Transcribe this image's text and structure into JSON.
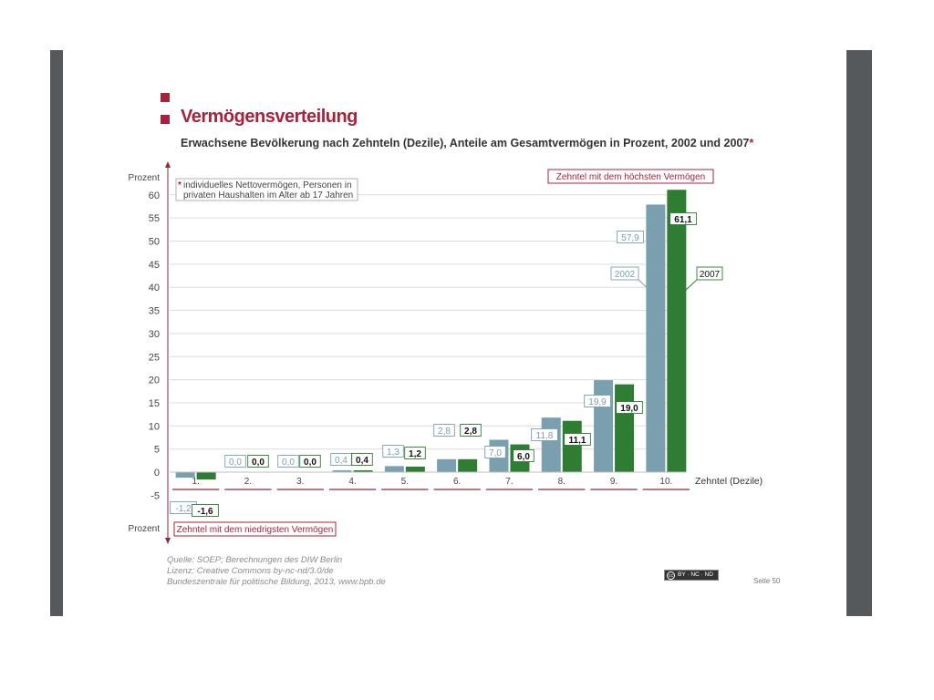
{
  "slide": {
    "title": "Vermögensverteilung",
    "subtitle": "Erwachsene Bevölkerung nach Zehnteln (Dezile), Anteile am Gesamtvermögen in Prozent, 2002 und 2007",
    "subtitle_mark": "*",
    "source_lines": [
      "Quelle: SOEP; Berechnungen des DIW Berlin",
      "Lizenz: Creative Commons by-nc-nd/3.0/de",
      "Bundeszentrale für politische Bildung, 2013, www.bpb.de"
    ],
    "license_badge": "BY · NC · ND",
    "license_logo": "cc",
    "page_number": "Seite 50"
  },
  "chart_data": {
    "type": "bar",
    "categories": [
      "1.",
      "2.",
      "3.",
      "4.",
      "5.",
      "6.",
      "7.",
      "8.",
      "9.",
      "10."
    ],
    "series": [
      {
        "name": "2002",
        "color": "#7a9fae",
        "values": [
          -1.2,
          0.0,
          0.0,
          0.4,
          1.3,
          2.8,
          7.0,
          11.8,
          19.9,
          57.9
        ],
        "labels": [
          "-1,2",
          "0,0",
          "0,0",
          "0,4",
          "1,3",
          "2,8",
          "7,0",
          "11,8",
          "19,9",
          "57,9"
        ]
      },
      {
        "name": "2007",
        "color": "#2e7d32",
        "values": [
          -1.6,
          0.0,
          0.0,
          0.4,
          1.2,
          2.8,
          6.0,
          11.1,
          19.0,
          61.1
        ],
        "labels": [
          "-1,6",
          "0,0",
          "0,0",
          "0,4",
          "1,2",
          "2,8",
          "6,0",
          "11,1",
          "19,0",
          "61,1"
        ]
      }
    ],
    "ylabel": "Prozent",
    "ylabel_bottom": "Prozent",
    "xlabel": "Zehntel (Dezile)",
    "ylim": [
      -5,
      60
    ],
    "yticks": [
      -5,
      0,
      5,
      10,
      15,
      20,
      25,
      30,
      35,
      40,
      45,
      50,
      55,
      60
    ],
    "grid": true,
    "note_mark": "*",
    "note": [
      "individuelles Nettovermögen, Personen in",
      "privaten Haushalten im Alter ab 17 Jahren"
    ],
    "annotation_top": "Zehntel mit dem höchsten Vermögen",
    "annotation_bottom": "Zehntel mit dem niedrigsten Vermögen"
  }
}
